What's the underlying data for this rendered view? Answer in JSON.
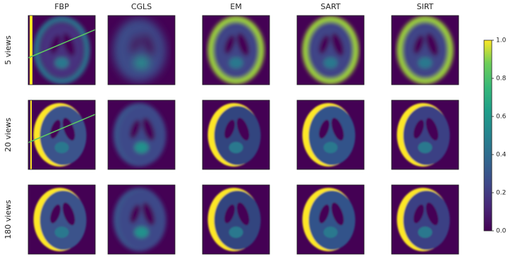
{
  "columns": [
    "FBP",
    "CGLS",
    "EM",
    "SART",
    "SIRT"
  ],
  "rows": [
    "5 views",
    "20 views",
    "180 views"
  ],
  "colorbar": {
    "lim": [
      0,
      1
    ],
    "ticks": [
      {
        "value": 0,
        "label": "0.0"
      },
      {
        "value": 0.2,
        "label": "0.2"
      },
      {
        "value": 0.4,
        "label": "0.4"
      },
      {
        "value": 0.6,
        "label": "0.6"
      },
      {
        "value": 0.8,
        "label": "0.8"
      },
      {
        "value": 1,
        "label": "1.0"
      }
    ]
  }
}
